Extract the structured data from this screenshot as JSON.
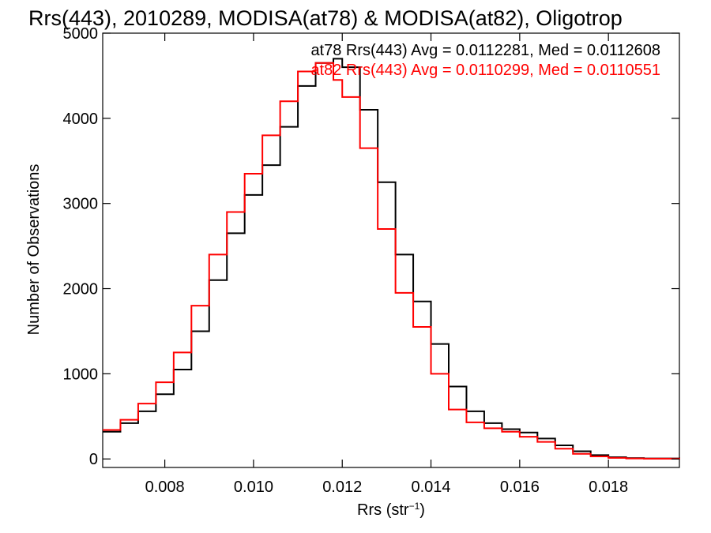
{
  "chart_data": {
    "type": "line",
    "title": "Rrs(443), 2010289, MODISA(at78) & MODISA(at82), Oligotrop",
    "xlabel_prefix": "Rrs (str",
    "xlabel_sup": "−1",
    "xlabel_suffix": ")",
    "ylabel": "Number of Observations",
    "xlim": [
      0.0066,
      0.0196
    ],
    "ylim": [
      -100,
      5000
    ],
    "x_ticks": [
      {
        "value": 0.008,
        "label": "0.008"
      },
      {
        "value": 0.01,
        "label": "0.010"
      },
      {
        "value": 0.012,
        "label": "0.012"
      },
      {
        "value": 0.014,
        "label": "0.014"
      },
      {
        "value": 0.016,
        "label": "0.016"
      },
      {
        "value": 0.018,
        "label": "0.018"
      }
    ],
    "y_ticks": [
      {
        "value": 0,
        "label": "0"
      },
      {
        "value": 1000,
        "label": "1000"
      },
      {
        "value": 2000,
        "label": "2000"
      },
      {
        "value": 3000,
        "label": "3000"
      },
      {
        "value": 4000,
        "label": "4000"
      },
      {
        "value": 5000,
        "label": "5000"
      }
    ],
    "grid": false,
    "legend": [
      {
        "text": "at78 Rrs(443) Avg = 0.0112281, Med = 0.0112608",
        "color": "#000000"
      },
      {
        "text": "at82 Rrs(443) Avg = 0.0110299, Med = 0.0110551",
        "color": "#ff0000"
      }
    ],
    "series": [
      {
        "color": "#000000",
        "points": [
          [
            0.0066,
            320
          ],
          [
            0.007,
            420
          ],
          [
            0.0074,
            560
          ],
          [
            0.0078,
            760
          ],
          [
            0.0082,
            1050
          ],
          [
            0.0086,
            1500
          ],
          [
            0.009,
            2100
          ],
          [
            0.0094,
            2650
          ],
          [
            0.0098,
            3100
          ],
          [
            0.0102,
            3450
          ],
          [
            0.0106,
            3900
          ],
          [
            0.011,
            4380
          ],
          [
            0.0114,
            4650
          ],
          [
            0.0118,
            4700
          ],
          [
            0.012,
            4600
          ],
          [
            0.0124,
            4100
          ],
          [
            0.0128,
            3250
          ],
          [
            0.0132,
            2400
          ],
          [
            0.0136,
            1850
          ],
          [
            0.014,
            1350
          ],
          [
            0.0144,
            850
          ],
          [
            0.0148,
            560
          ],
          [
            0.0152,
            420
          ],
          [
            0.0156,
            350
          ],
          [
            0.016,
            310
          ],
          [
            0.0164,
            240
          ],
          [
            0.0168,
            160
          ],
          [
            0.0172,
            90
          ],
          [
            0.0176,
            45
          ],
          [
            0.018,
            20
          ],
          [
            0.0184,
            10
          ],
          [
            0.0188,
            5
          ],
          [
            0.0196,
            0
          ]
        ]
      },
      {
        "color": "#ff0000",
        "points": [
          [
            0.0066,
            340
          ],
          [
            0.007,
            460
          ],
          [
            0.0074,
            650
          ],
          [
            0.0078,
            900
          ],
          [
            0.0082,
            1250
          ],
          [
            0.0086,
            1800
          ],
          [
            0.009,
            2400
          ],
          [
            0.0094,
            2900
          ],
          [
            0.0098,
            3350
          ],
          [
            0.0102,
            3800
          ],
          [
            0.0106,
            4200
          ],
          [
            0.011,
            4550
          ],
          [
            0.0114,
            4650
          ],
          [
            0.0118,
            4450
          ],
          [
            0.012,
            4250
          ],
          [
            0.0124,
            3650
          ],
          [
            0.0128,
            2700
          ],
          [
            0.0132,
            1950
          ],
          [
            0.0136,
            1550
          ],
          [
            0.014,
            1000
          ],
          [
            0.0144,
            580
          ],
          [
            0.0148,
            430
          ],
          [
            0.0152,
            360
          ],
          [
            0.0156,
            320
          ],
          [
            0.016,
            260
          ],
          [
            0.0164,
            200
          ],
          [
            0.0168,
            120
          ],
          [
            0.0172,
            60
          ],
          [
            0.0176,
            30
          ],
          [
            0.018,
            12
          ],
          [
            0.0184,
            6
          ],
          [
            0.0188,
            3
          ],
          [
            0.0196,
            0
          ]
        ]
      }
    ]
  }
}
